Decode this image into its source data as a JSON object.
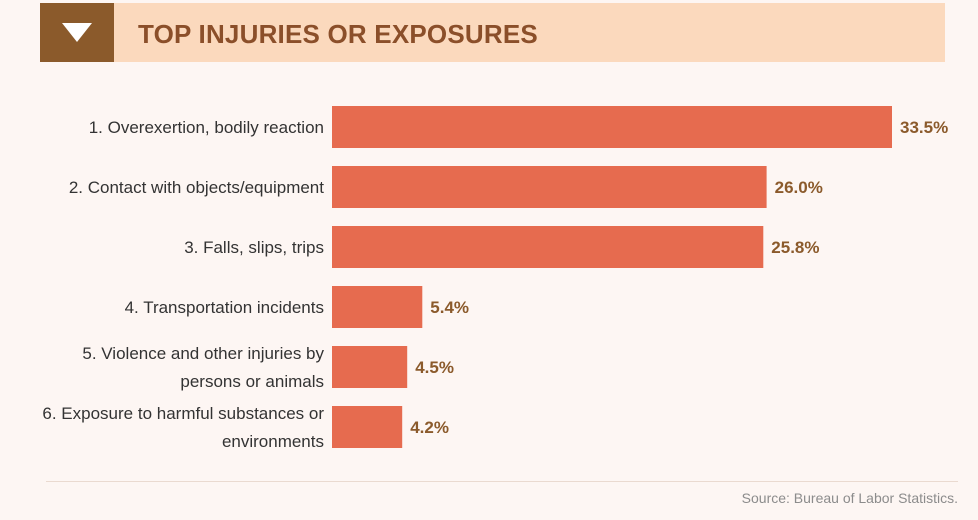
{
  "header": {
    "title": "TOP INJURIES OR EXPOSURES",
    "toggle_icon": "triangle-down-icon"
  },
  "colors": {
    "bar": "#e66b4f",
    "value_text": "#8b5a2b",
    "label_text": "#333333",
    "header_bg": "#fbd9bd",
    "header_tab": "#8b5a2b",
    "page_bg": "#fdf6f3"
  },
  "chart_data": {
    "type": "bar",
    "orientation": "horizontal",
    "title": "TOP INJURIES OR EXPOSURES",
    "categories": [
      [
        "1. Overexertion,  bodily reaction"
      ],
      [
        "2. Contact with objects/equipment"
      ],
      [
        "3. Falls, slips, trips"
      ],
      [
        "4. Transportation incidents"
      ],
      [
        "5. Violence and other injuries by",
        "persons or animals"
      ],
      [
        "6. Exposure to harmful substances or",
        "environments"
      ]
    ],
    "values": [
      33.5,
      26.0,
      25.8,
      5.4,
      4.5,
      4.2
    ],
    "value_labels": [
      "33.5%",
      "26.0%",
      "25.8%",
      "5.4%",
      "4.5%",
      "4.2%"
    ],
    "xlim": [
      0,
      33.5
    ],
    "grid": false,
    "legend": "none"
  },
  "footer": {
    "source": "Source: Bureau of Labor Statistics."
  }
}
